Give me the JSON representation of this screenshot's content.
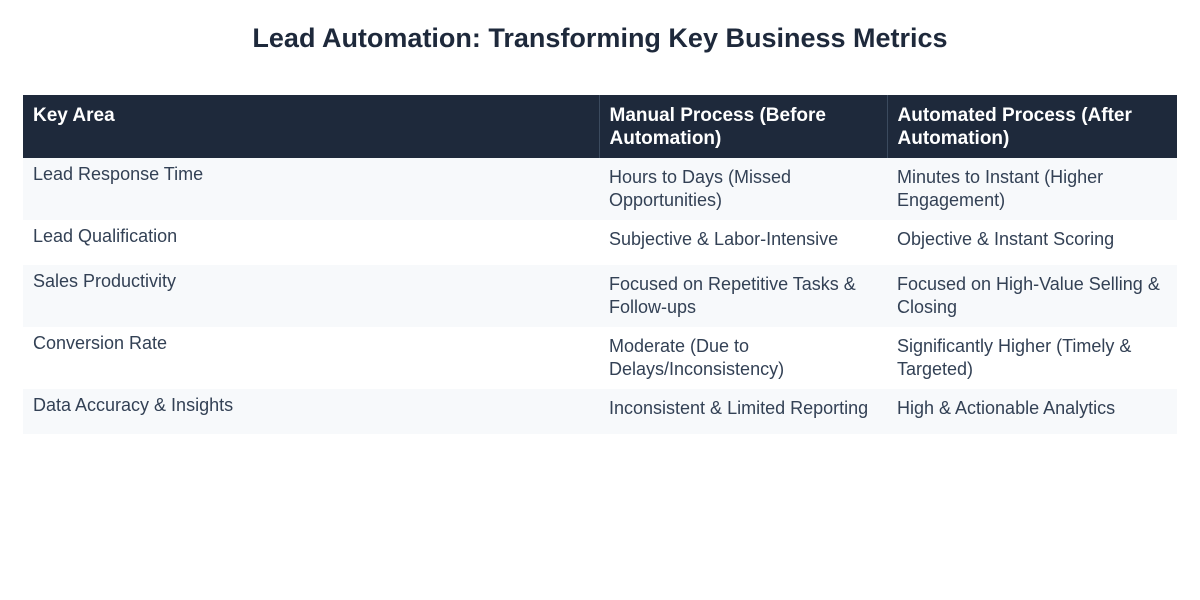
{
  "page": {
    "title": "Lead Automation: Transforming Key Business Metrics"
  },
  "table": {
    "headers": [
      "Key Area",
      "Manual Process (Before Automation)",
      "Automated Process (After Automation)"
    ],
    "rows": [
      [
        "Lead Response Time",
        "Hours to Days (Missed Opportunities)",
        "Minutes to Instant (Higher Engagement)"
      ],
      [
        "Lead Qualification",
        "Subjective & Labor-Intensive",
        "Objective & Instant Scoring"
      ],
      [
        "Sales Productivity",
        "Focused on Repetitive Tasks & Follow-ups",
        "Focused on High-Value Selling & Closing"
      ],
      [
        "Conversion Rate",
        "Moderate (Due to Delays/Inconsistency)",
        "Significantly Higher (Timely & Targeted)"
      ],
      [
        "Data Accuracy & Insights",
        "Inconsistent & Limited Reporting",
        "High & Actionable Analytics"
      ]
    ]
  },
  "colors": {
    "header_bg": "#1e293b",
    "header_text": "#ffffff",
    "row_alt_bg": "#f7f9fb",
    "body_text": "#334155"
  }
}
